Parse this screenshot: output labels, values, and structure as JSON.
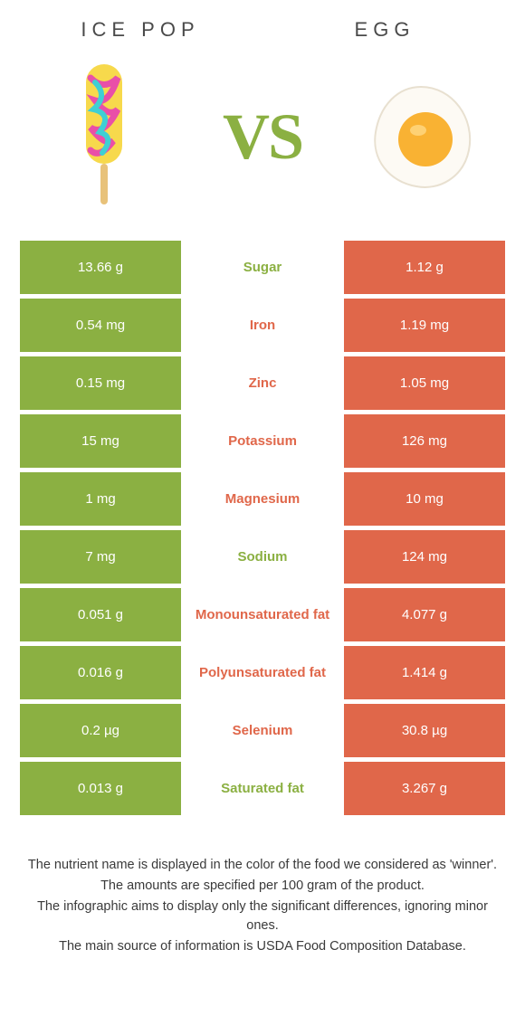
{
  "colors": {
    "green": "#8bb042",
    "orange": "#e0674a",
    "white": "#ffffff",
    "text": "#333333"
  },
  "left": {
    "title": "ICE POP"
  },
  "right": {
    "title": "EGG"
  },
  "vs": "VS",
  "rows": [
    {
      "nutrient": "Sugar",
      "left": "13.66 g",
      "right": "1.12 g",
      "winner": "left"
    },
    {
      "nutrient": "Iron",
      "left": "0.54 mg",
      "right": "1.19 mg",
      "winner": "right"
    },
    {
      "nutrient": "Zinc",
      "left": "0.15 mg",
      "right": "1.05 mg",
      "winner": "right"
    },
    {
      "nutrient": "Potassium",
      "left": "15 mg",
      "right": "126 mg",
      "winner": "right"
    },
    {
      "nutrient": "Magnesium",
      "left": "1 mg",
      "right": "10 mg",
      "winner": "right"
    },
    {
      "nutrient": "Sodium",
      "left": "7 mg",
      "right": "124 mg",
      "winner": "left"
    },
    {
      "nutrient": "Monounsaturated fat",
      "left": "0.051 g",
      "right": "4.077 g",
      "winner": "right"
    },
    {
      "nutrient": "Polyunsaturated fat",
      "left": "0.016 g",
      "right": "1.414 g",
      "winner": "right"
    },
    {
      "nutrient": "Selenium",
      "left": "0.2 µg",
      "right": "30.8 µg",
      "winner": "right"
    },
    {
      "nutrient": "Saturated fat",
      "left": "0.013 g",
      "right": "3.267 g",
      "winner": "left"
    }
  ],
  "footnotes": [
    "The nutrient name is displayed in the color of the food we considered as 'winner'.",
    "The amounts are specified per 100 gram of the product.",
    "The infographic aims to display only the significant differences, ignoring minor ones.",
    "The main source of information is USDA Food Composition Database."
  ]
}
